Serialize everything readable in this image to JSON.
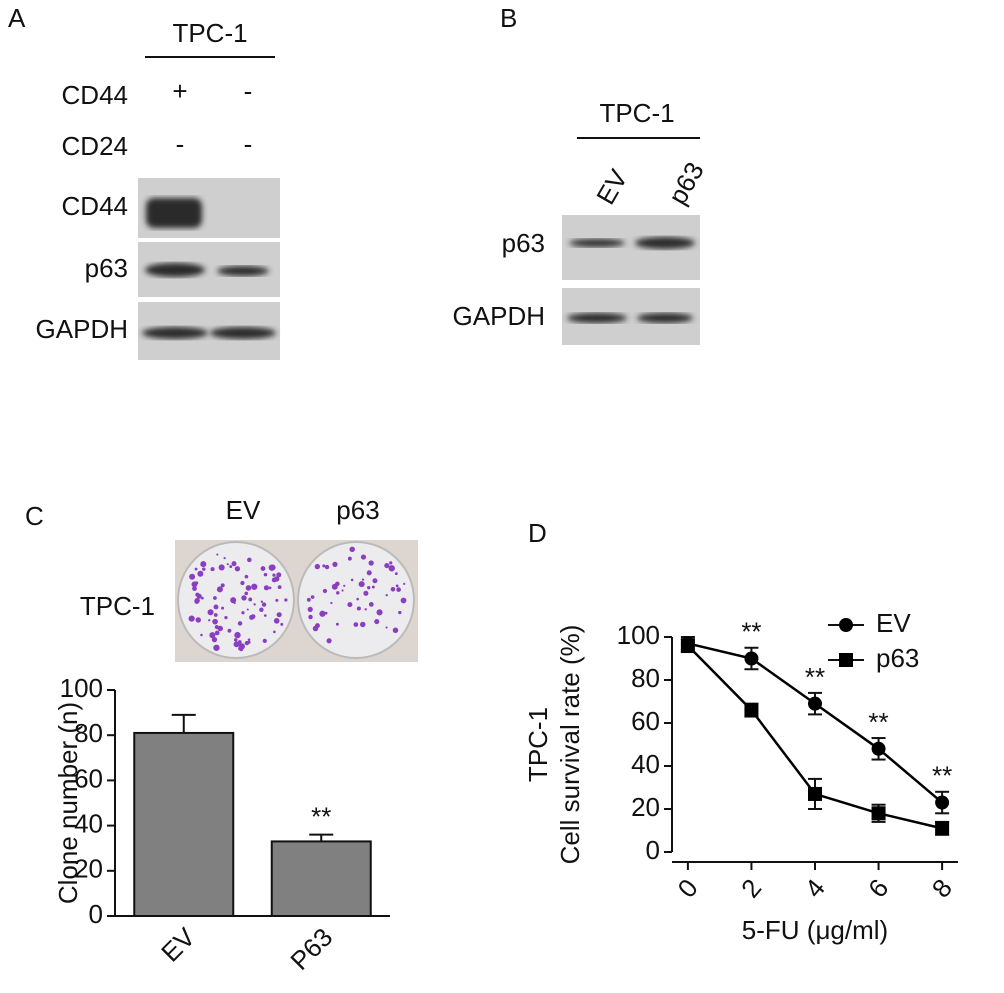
{
  "panel_a": {
    "label": "A",
    "cell_line": "TPC-1",
    "row_labels": [
      "CD44",
      "CD24"
    ],
    "conditions": [
      [
        "+",
        "-"
      ],
      [
        "-",
        "-"
      ]
    ],
    "blots": [
      "CD44",
      "p63",
      "GAPDH"
    ]
  },
  "panel_b": {
    "label": "B",
    "cell_line": "TPC-1",
    "lanes": [
      "EV",
      "p63"
    ],
    "blots": [
      "p63",
      "GAPDH"
    ]
  },
  "panel_c_image": {
    "columns": [
      "EV",
      "p63"
    ],
    "row_label": "TPC-1"
  },
  "chart_data": [
    {
      "type": "bar",
      "panel_label": "C",
      "ylabel": "Clone number (n)",
      "categories": [
        "EV",
        "P63"
      ],
      "values": [
        81,
        33
      ],
      "errors": [
        8,
        3
      ],
      "significance": [
        null,
        "**"
      ],
      "color": "#808080",
      "ylim": [
        0,
        100
      ],
      "yticks": [
        0,
        20,
        40,
        60,
        80,
        100
      ]
    },
    {
      "type": "line",
      "panel_label": "D",
      "ylabel_lines": [
        "TPC-1",
        "Cell survival rate (%)"
      ],
      "xlabel": "5-FU (μg/ml)",
      "x": [
        0,
        2,
        4,
        6,
        8
      ],
      "series": [
        {
          "name": "EV",
          "color": "#000000",
          "marker": "circle",
          "values": [
            97,
            90,
            69,
            48,
            23
          ],
          "errors": [
            3,
            5,
            5,
            5,
            5
          ]
        },
        {
          "name": "p63",
          "color": "#000000",
          "marker": "square",
          "values": [
            96,
            66,
            27,
            18,
            11
          ],
          "errors": [
            3,
            3,
            7,
            4,
            3
          ]
        }
      ],
      "significance": [
        null,
        "**",
        "**",
        "**",
        "**"
      ],
      "xlim": [
        -0.5,
        8.5
      ],
      "xticks": [
        0,
        2,
        4,
        6,
        8
      ],
      "ylim": [
        0,
        100
      ],
      "yticks": [
        0,
        20,
        40,
        60,
        80,
        100
      ],
      "legend": "upper right"
    }
  ]
}
